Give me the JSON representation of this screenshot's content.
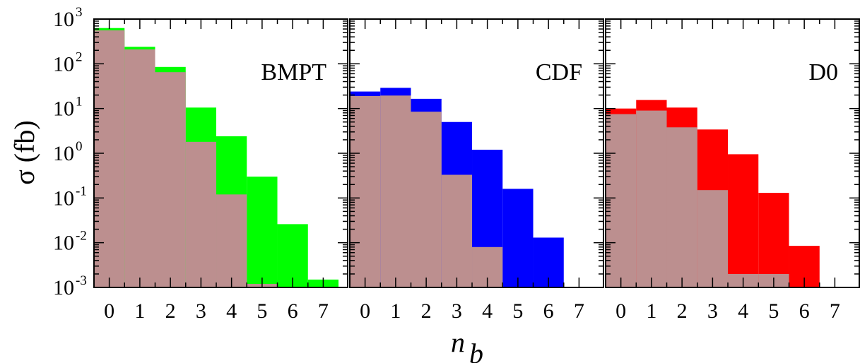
{
  "chart_data": {
    "type": "bar",
    "layout": "three side-by-side step histograms sharing the y axis",
    "xlabel": "n",
    "xlabel_sub": "b",
    "ylabel": "σ (fb)",
    "y_scale": "log",
    "ylim": [
      0.001,
      1000
    ],
    "y_tick_labels": [
      {
        "base": "10",
        "exp": "-3"
      },
      {
        "base": "10",
        "exp": "-2"
      },
      {
        "base": "10",
        "exp": "-1"
      },
      {
        "base": "10",
        "exp": "0"
      },
      {
        "base": "10",
        "exp": "1"
      },
      {
        "base": "10",
        "exp": "2"
      },
      {
        "base": "10",
        "exp": "3"
      }
    ],
    "x_tick_labels": [
      "0",
      "1",
      "2",
      "3",
      "4",
      "5",
      "6",
      "7"
    ],
    "xlim": [
      -0.5,
      7.8
    ],
    "underlay_color": "#bc8f8f",
    "panels": [
      {
        "label": "BMPT",
        "color": "#00ff00",
        "categories": [
          0,
          1,
          2,
          3,
          4,
          5,
          6,
          7
        ],
        "colored_values": [
          630,
          240,
          85,
          10.5,
          2.4,
          0.3,
          0.026,
          0.0015
        ],
        "underlay_values": [
          560,
          210,
          65,
          1.8,
          0.12,
          0.0012,
          null,
          null
        ]
      },
      {
        "label": "CDF",
        "color": "#0000ff",
        "categories": [
          0,
          1,
          2,
          3,
          4,
          5,
          6,
          7
        ],
        "colored_values": [
          24,
          29,
          16.5,
          5,
          1.2,
          0.16,
          0.013,
          null
        ],
        "underlay_values": [
          19,
          19.5,
          8.5,
          0.33,
          0.008,
          null,
          null,
          null
        ]
      },
      {
        "label": "D0",
        "color": "#ff0000",
        "categories": [
          0,
          1,
          2,
          3,
          4,
          5,
          6,
          7
        ],
        "colored_values": [
          10,
          15.5,
          10.5,
          3.4,
          0.95,
          0.13,
          0.0085,
          null
        ],
        "underlay_values": [
          7.5,
          9,
          3.8,
          0.15,
          0.002,
          0.002,
          null,
          null
        ]
      }
    ]
  }
}
